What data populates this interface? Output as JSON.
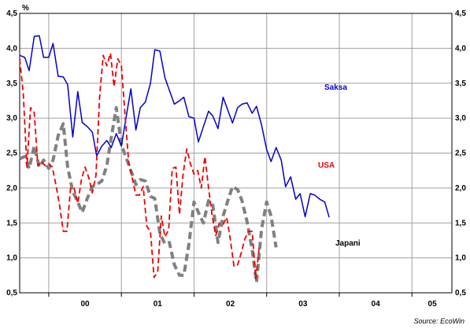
{
  "chart_data": {
    "type": "line",
    "unit": "%",
    "source": "Source: EcoWin",
    "x_tick_labels": [
      "00",
      "01",
      "02",
      "03",
      "04",
      "05"
    ],
    "y_tick_labels": [
      "0,5",
      "1,0",
      "1,5",
      "2,0",
      "2,5",
      "3,0",
      "3,5",
      "4,0",
      "4,5"
    ],
    "ylim": [
      0.5,
      4.5
    ],
    "xlim": [
      1999.6,
      2005.55
    ],
    "grid": true,
    "series": [
      {
        "name": "Saksa",
        "color": "#0000cc",
        "style": "solid",
        "x": [
          1999.6,
          1999.67,
          1999.73,
          1999.8,
          1999.87,
          1999.93,
          2000.0,
          2000.06,
          2000.13,
          2000.2,
          2000.26,
          2000.33,
          2000.4,
          2000.46,
          2000.53,
          2000.6,
          2000.66,
          2000.73,
          2000.8,
          2000.86,
          2000.93,
          2001.0,
          2001.06,
          2001.13,
          2001.2,
          2001.26,
          2001.33,
          2001.4,
          2001.46,
          2001.53,
          2001.6,
          2001.66,
          2001.73,
          2001.8,
          2001.86,
          2001.93,
          2002.0,
          2002.06,
          2002.13,
          2002.2,
          2002.26,
          2002.33,
          2002.4,
          2002.46,
          2002.53,
          2002.6,
          2002.66,
          2002.73,
          2002.8,
          2002.86,
          2002.93,
          2003.0,
          2003.06,
          2003.13,
          2003.2,
          2003.26,
          2003.33,
          2003.4,
          2003.46,
          2003.53,
          2003.6,
          2003.66,
          2003.73,
          2003.8,
          2003.86,
          2003.93,
          2004.0,
          2004.06,
          2004.13,
          2004.2,
          2004.26,
          2004.33,
          2004.4,
          2004.46,
          2004.53,
          2004.6,
          2004.66,
          2004.73,
          2004.8,
          2004.86,
          2004.93,
          2005.0,
          2005.06,
          2005.13,
          2005.2,
          2005.26,
          2005.33,
          2005.4
        ],
        "values": [
          3.9,
          3.87,
          3.68,
          4.17,
          4.18,
          3.87,
          3.87,
          4.07,
          3.6,
          3.59,
          3.48,
          2.73,
          3.38,
          2.94,
          2.88,
          2.8,
          2.46,
          2.6,
          2.68,
          2.58,
          2.78,
          2.6,
          2.98,
          3.42,
          2.83,
          3.15,
          3.23,
          3.5,
          3.98,
          3.96,
          3.58,
          3.4,
          3.2,
          3.25,
          3.3,
          3.02,
          3.0,
          2.66,
          2.88,
          3.1,
          3.03,
          2.85,
          3.3,
          3.13,
          2.93,
          3.15,
          3.2,
          3.22,
          3.07,
          3.17,
          2.9,
          2.55,
          2.38,
          2.58,
          2.4,
          2.02,
          2.16,
          1.84,
          1.92,
          1.59,
          1.92,
          1.9,
          1.84,
          1.8,
          1.58,
          null,
          null,
          null,
          null,
          null,
          null,
          null,
          null,
          null,
          null,
          null,
          null,
          null,
          null,
          null,
          null,
          null,
          null,
          null,
          null,
          null,
          null,
          null
        ]
      },
      {
        "name": "USA",
        "color": "#ee0000",
        "style": "dashed",
        "x": [
          1999.6,
          1999.65,
          1999.7,
          1999.75,
          1999.8,
          1999.85,
          1999.9,
          1999.95,
          2000.0,
          2000.05,
          2000.1,
          2000.15,
          2000.2,
          2000.25,
          2000.3,
          2000.35,
          2000.4,
          2000.45,
          2000.5,
          2000.55,
          2000.6,
          2000.65,
          2000.7,
          2000.75,
          2000.8,
          2000.85,
          2000.9,
          2000.95,
          2001.0,
          2001.05,
          2001.1,
          2001.15,
          2001.2,
          2001.25,
          2001.3,
          2001.35,
          2001.4,
          2001.45,
          2001.5,
          2001.55,
          2001.6,
          2001.65,
          2001.7,
          2001.75,
          2001.8,
          2001.85,
          2001.9,
          2001.95,
          2002.0,
          2002.05,
          2002.1,
          2002.15,
          2002.2,
          2002.25,
          2002.3,
          2002.35,
          2002.4,
          2002.45,
          2002.5,
          2002.55,
          2002.6,
          2002.65,
          2002.7,
          2002.75,
          2002.8,
          2002.85,
          2002.9,
          2002.95,
          2003.0,
          2003.05,
          2003.1,
          2003.15,
          2003.2,
          2003.25,
          2003.3,
          2003.35,
          2003.4,
          2003.45,
          2003.5,
          2003.55,
          2003.6,
          2003.65,
          2003.7,
          2003.75,
          2003.8,
          2003.85,
          2003.9,
          2003.95,
          2004.0,
          2004.05,
          2004.1,
          2004.15,
          2004.2,
          2004.25,
          2004.3,
          2004.35,
          2004.4,
          2004.45
        ],
        "values": [
          3.85,
          3.35,
          2.3,
          3.15,
          3.08,
          2.32,
          2.38,
          2.32,
          2.35,
          2.3,
          2.04,
          1.75,
          1.38,
          1.38,
          2.0,
          2.0,
          1.78,
          2.12,
          2.3,
          2.15,
          1.93,
          2.18,
          3.3,
          3.9,
          3.75,
          3.93,
          3.45,
          3.85,
          3.75,
          3.05,
          2.38,
          2.14,
          1.9,
          1.9,
          2.02,
          1.45,
          1.38,
          0.72,
          0.8,
          1.6,
          1.3,
          1.4,
          2.28,
          2.3,
          1.62,
          2.2,
          2.56,
          2.35,
          2.2,
          2.25,
          2.0,
          2.45,
          2.0,
          1.6,
          1.32,
          1.5,
          1.48,
          1.58,
          1.26,
          0.88,
          0.9,
          1.07,
          1.27,
          1.38,
          1.38,
          0.7,
          1.18,
          null,
          null,
          null,
          null,
          null,
          null,
          null,
          null,
          null,
          null,
          null,
          null,
          null,
          null,
          null,
          null,
          null,
          null,
          null,
          null,
          null,
          null,
          null,
          null,
          null,
          null,
          null,
          null,
          null,
          null,
          null
        ]
      },
      {
        "name": "Japani",
        "color": "#808080",
        "style": "dashed-thick",
        "x": [
          1999.6,
          1999.67,
          1999.73,
          1999.8,
          1999.87,
          1999.93,
          2000.0,
          2000.06,
          2000.13,
          2000.2,
          2000.26,
          2000.33,
          2000.4,
          2000.46,
          2000.53,
          2000.6,
          2000.66,
          2000.73,
          2000.8,
          2000.86,
          2000.93,
          2001.0,
          2001.06,
          2001.13,
          2001.2,
          2001.26,
          2001.33,
          2001.4,
          2001.46,
          2001.53,
          2001.6,
          2001.66,
          2001.73,
          2001.8,
          2001.86,
          2001.93,
          2002.0,
          2002.06,
          2002.13,
          2002.2,
          2002.26,
          2002.33,
          2002.4,
          2002.46,
          2002.53,
          2002.6,
          2002.66,
          2002.73,
          2002.8,
          2002.86,
          2002.93,
          2003.0,
          2003.06,
          2003.13,
          2003.2,
          2003.26,
          2003.33,
          2003.4,
          2003.46,
          2003.53,
          2003.6,
          2003.66,
          2003.73,
          2003.8,
          2003.86,
          2003.93,
          2004.0,
          2004.06,
          2004.13,
          2004.2,
          2004.26,
          2004.33,
          2004.4,
          2004.46,
          2004.53,
          2004.6,
          2004.66,
          2004.73,
          2004.8,
          2004.86,
          2004.93,
          2005.0,
          2005.06,
          2005.13,
          2005.2,
          2005.26,
          2005.33,
          2005.4
        ],
        "values": [
          2.42,
          2.45,
          2.28,
          2.6,
          2.3,
          2.4,
          2.28,
          2.4,
          2.75,
          2.92,
          2.3,
          1.95,
          1.8,
          1.65,
          1.85,
          2.02,
          2.05,
          2.1,
          2.32,
          2.72,
          3.15,
          2.62,
          2.45,
          2.25,
          2.05,
          2.12,
          2.1,
          1.88,
          1.85,
          1.35,
          1.2,
          1.22,
          0.9,
          0.75,
          0.75,
          1.2,
          1.8,
          1.65,
          1.5,
          1.82,
          1.75,
          1.22,
          1.6,
          1.8,
          2.02,
          1.98,
          1.82,
          1.52,
          1.12,
          0.65,
          1.42,
          1.8,
          1.6,
          1.15,
          null,
          null,
          null,
          null,
          null,
          null,
          null,
          null,
          null,
          null,
          null,
          null,
          null,
          null,
          null,
          null,
          null,
          null,
          null,
          null,
          null,
          null,
          null,
          null,
          null,
          null,
          null,
          null,
          null,
          null,
          null,
          null,
          null,
          null
        ]
      }
    ]
  }
}
